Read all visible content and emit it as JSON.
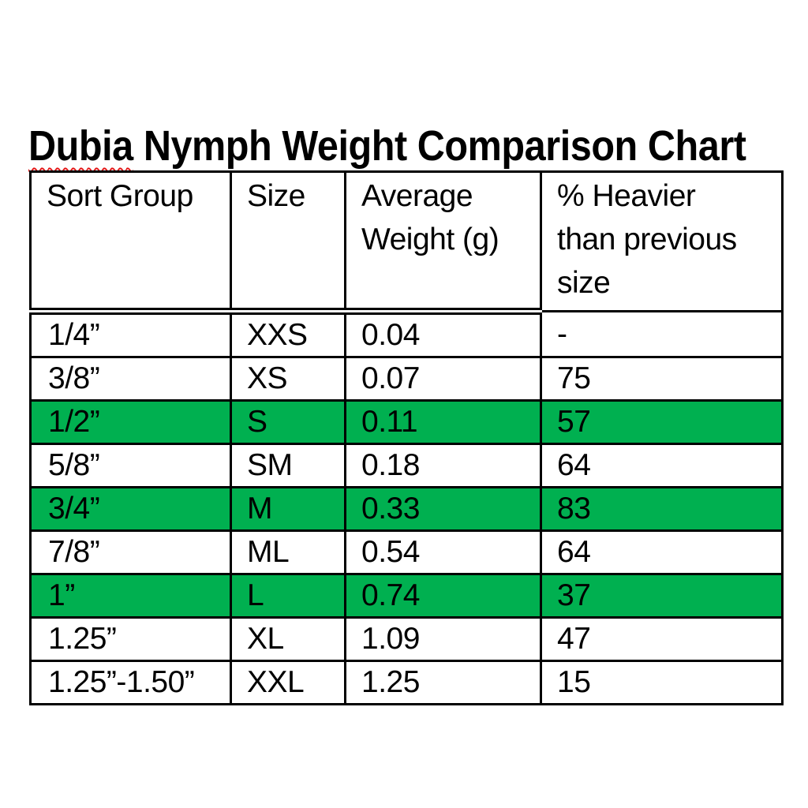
{
  "page": {
    "title_misspelled": "Dubia",
    "title_rest": " Nymph Weight Comparison Chart"
  },
  "table": {
    "headers": [
      {
        "label": "Sort Group"
      },
      {
        "label": "Size"
      },
      {
        "label": "Average\nWeight (g)"
      },
      {
        "label": "% Heavier\nthan previous\nsize"
      }
    ],
    "rows": [
      {
        "sort_group": "1/4”",
        "size": "XXS",
        "avg_weight_g": "0.04",
        "pct_heavier": "-",
        "highlighted": false
      },
      {
        "sort_group": "3/8”",
        "size": "XS",
        "avg_weight_g": "0.07",
        "pct_heavier": "75",
        "highlighted": false
      },
      {
        "sort_group": "1/2”",
        "size": "S",
        "avg_weight_g": "0.11",
        "pct_heavier": "57",
        "highlighted": true
      },
      {
        "sort_group": "5/8”",
        "size": "SM",
        "avg_weight_g": "0.18",
        "pct_heavier": "64",
        "highlighted": false
      },
      {
        "sort_group": "3/4”",
        "size": "M",
        "avg_weight_g": "0.33",
        "pct_heavier": "83",
        "highlighted": true
      },
      {
        "sort_group": "7/8”",
        "size": "ML",
        "avg_weight_g": "0.54",
        "pct_heavier": "64",
        "highlighted": false
      },
      {
        "sort_group": "1”",
        "size": "L",
        "avg_weight_g": "0.74",
        "pct_heavier": "37",
        "highlighted": true
      },
      {
        "sort_group": "1.25”",
        "size": "XL",
        "avg_weight_g": "1.09",
        "pct_heavier": "47",
        "highlighted": false
      },
      {
        "sort_group": "1.25”-1.50”",
        "size": "XXL",
        "avg_weight_g": "1.25",
        "pct_heavier": "15",
        "highlighted": false
      }
    ]
  },
  "colors": {
    "highlight_green": "#00b050",
    "border_black": "#000000",
    "squiggle_red": "#e01616",
    "text_black": "#000000"
  }
}
